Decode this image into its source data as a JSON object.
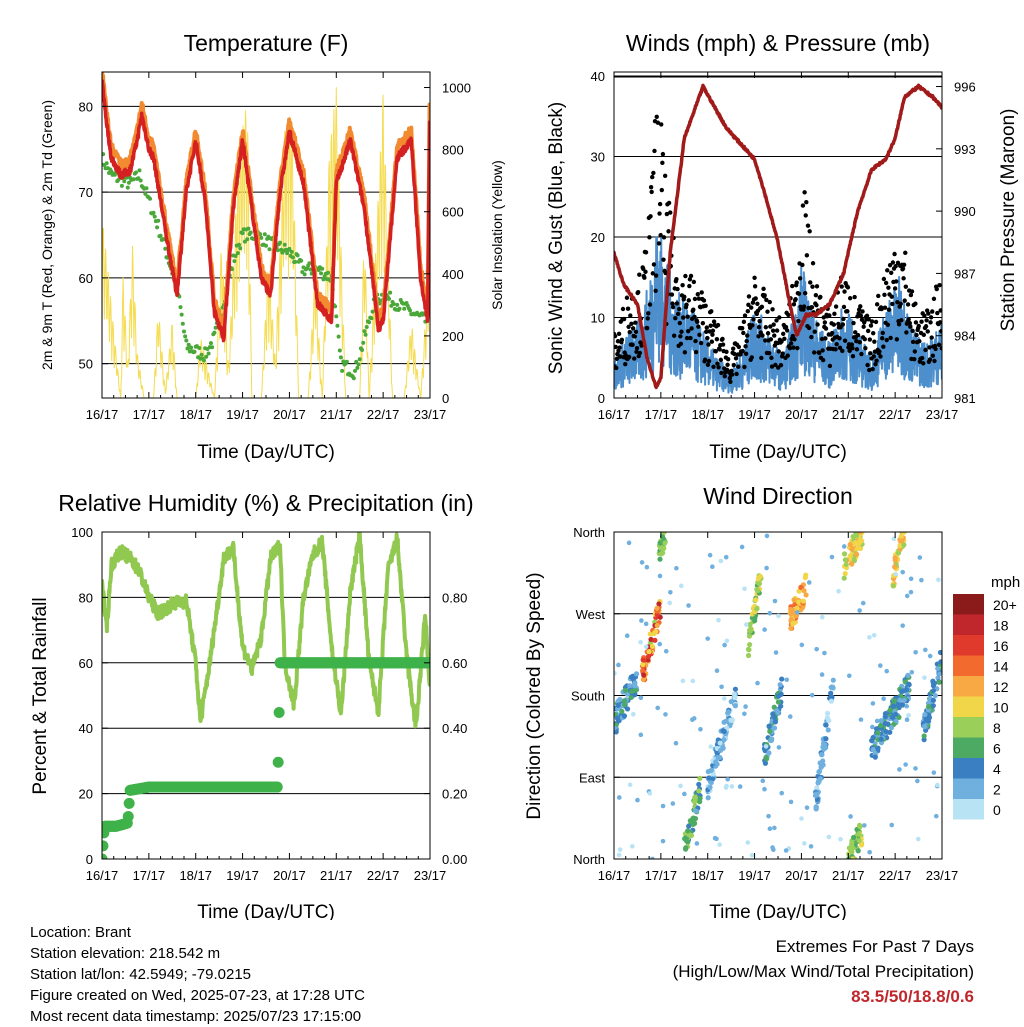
{
  "footer": {
    "location": "Location: Brant",
    "elevation": "Station elevation: 218.542 m",
    "latlon": "Station lat/lon: 42.5949; -79.0215",
    "created": "Figure created on Wed, 2025-07-23, at 17:28 UTC",
    "recent": "Most recent data timestamp: 2025/07/23 17:15:00",
    "extremes_title": "Extremes For Past 7 Days",
    "extremes_desc": "(High/Low/Max Wind/Total Precipitation)",
    "extremes_values": "83.5/50/18.8/0.6"
  },
  "colors": {
    "temp_9m": "#d42020",
    "temp_2m": "#f28a30",
    "dewpoint": "#4aa83a",
    "solar": "#f5dc50",
    "wind": "#4d8fcc",
    "gust": "#000000",
    "pressure": "#a01a1a",
    "rh": "#90c850",
    "rain": "#3fb24a"
  },
  "chart_data": [
    {
      "id": "temperature",
      "type": "line",
      "title": "Temperature (F)",
      "xlabel": "Time (Day/UTC)",
      "ylabel": "2m & 9m T (Red, Orange) & 2m Td (Green)",
      "y2label": "Solar Insolation (Yellow)",
      "xticks": [
        "16/17",
        "17/17",
        "18/17",
        "19/17",
        "20/17",
        "21/17",
        "22/17",
        "23/17"
      ],
      "xlim": [
        0,
        7
      ],
      "ylim": [
        46,
        84
      ],
      "yticks": [
        50,
        60,
        70,
        80
      ],
      "y2lim": [
        0,
        1050
      ],
      "y2ticks": [
        0,
        200,
        400,
        600,
        800,
        1000
      ],
      "grid": true,
      "series": [
        {
          "key": "temp",
          "x": [
            0,
            0.1,
            0.2,
            0.4,
            0.6,
            0.75,
            0.85,
            1.0,
            1.1,
            1.4,
            1.6,
            1.8,
            2.0,
            2.2,
            2.4,
            2.6,
            2.8,
            3.0,
            3.2,
            3.4,
            3.6,
            3.8,
            4.0,
            4.3,
            4.6,
            4.9,
            5.0,
            5.3,
            5.6,
            5.9,
            6.0,
            6.3,
            6.6,
            6.8,
            6.95,
            7.0
          ],
          "values": [
            83,
            78,
            74,
            72,
            72.5,
            76,
            79,
            75,
            74,
            64,
            58,
            70,
            76,
            69,
            56,
            53,
            68,
            76,
            68,
            60,
            58,
            70,
            77,
            71,
            57,
            55,
            71,
            76,
            68,
            54,
            55,
            74,
            76,
            60,
            55,
            83
          ]
        },
        {
          "key": "dewpoint",
          "x": [
            0,
            0.2,
            0.6,
            0.8,
            1.0,
            1.2,
            1.6,
            1.8,
            2.2,
            2.4,
            2.8,
            3.0,
            3.3,
            3.6,
            4.0,
            4.3,
            4.6,
            4.9,
            5.1,
            5.4,
            5.8,
            6.0,
            6.3,
            6.6,
            6.9,
            7.0
          ],
          "values": [
            74,
            72,
            71,
            72,
            69,
            66,
            59,
            52,
            51,
            53,
            62,
            65,
            65,
            64,
            63,
            61,
            61,
            60,
            50,
            49,
            57,
            58,
            57,
            56,
            55,
            65
          ]
        },
        {
          "key": "solar",
          "x": [
            0,
            0.4,
            0.45,
            0.55,
            0.65,
            0.75,
            0.9,
            1.1,
            1.2,
            1.35,
            1.5,
            1.6,
            2.0,
            2.1,
            2.4,
            2.55,
            2.7,
            2.9,
            3.1,
            3.2,
            3.4,
            3.55,
            3.7,
            3.9,
            4.05,
            4.2,
            4.4,
            4.55,
            4.7,
            4.85,
            5.0,
            5.2,
            5.5,
            5.6,
            5.7,
            6.0,
            6.2,
            6.45,
            6.6,
            6.8,
            7.0
          ],
          "values": [
            600,
            0,
            400,
            100,
            500,
            150,
            0,
            0,
            300,
            20,
            250,
            0,
            0,
            200,
            0,
            500,
            100,
            750,
            980,
            0,
            0,
            450,
            120,
            860,
            950,
            0,
            0,
            420,
            0,
            800,
            1000,
            0,
            0,
            560,
            0,
            1000,
            0,
            0,
            250,
            0,
            500
          ]
        }
      ]
    },
    {
      "id": "winds",
      "type": "line",
      "title": "Winds (mph) & Pressure (mb)",
      "xlabel": "Time (Day/UTC)",
      "ylabel": "Sonic Wind & Gust (Blue, Black)",
      "y2label": "Station Pressure (Maroon)",
      "xticks": [
        "16/17",
        "17/17",
        "18/17",
        "19/17",
        "20/17",
        "21/17",
        "22/17",
        "23/17"
      ],
      "xlim": [
        0,
        7
      ],
      "ylim": [
        0,
        40.5
      ],
      "yticks": [
        0,
        10,
        20,
        30,
        40
      ],
      "y2lim": [
        981,
        996.7
      ],
      "y2ticks": [
        981,
        984,
        987,
        990,
        993,
        996
      ],
      "grid": true,
      "series": [
        {
          "key": "gust",
          "x": [
            0,
            0.3,
            0.6,
            0.8,
            0.95,
            1.05,
            1.3,
            1.6,
            1.9,
            2.2,
            2.5,
            2.8,
            3.0,
            3.3,
            3.6,
            3.9,
            4.0,
            4.3,
            4.6,
            4.9,
            5.2,
            5.5,
            5.8,
            6.1,
            6.4,
            6.7,
            7.0
          ],
          "values": [
            6,
            10,
            12,
            20,
            35,
            22,
            14,
            12,
            10,
            7,
            4,
            8,
            12,
            9,
            7,
            12,
            22,
            11,
            8,
            12,
            9,
            7,
            13,
            17,
            9,
            8,
            12
          ]
        },
        {
          "key": "wind",
          "x": [
            0,
            0.3,
            0.6,
            0.8,
            0.95,
            1.05,
            1.3,
            1.6,
            1.9,
            2.2,
            2.5,
            2.8,
            3.0,
            3.3,
            3.6,
            3.9,
            4.0,
            4.3,
            4.6,
            4.9,
            5.2,
            5.5,
            5.8,
            6.1,
            6.4,
            6.7,
            7.0
          ],
          "values": [
            3,
            5,
            6,
            10,
            14,
            11,
            8,
            7,
            5,
            3,
            2,
            4,
            7,
            5,
            3,
            7,
            10,
            6,
            4,
            7,
            5,
            3,
            7,
            9,
            5,
            4,
            6
          ]
        },
        {
          "key": "pressure",
          "x": [
            0,
            0.2,
            0.5,
            0.7,
            0.9,
            1.0,
            1.2,
            1.5,
            1.9,
            2.4,
            2.8,
            3.0,
            3.2,
            3.5,
            3.8,
            3.9,
            4.1,
            4.3,
            4.6,
            4.9,
            5.2,
            5.5,
            5.8,
            6.0,
            6.2,
            6.5,
            6.8,
            7.0
          ],
          "values": [
            988,
            986.5,
            985.5,
            983,
            981.5,
            982,
            988,
            993.5,
            996,
            994,
            993,
            992.5,
            991,
            988.5,
            985,
            984,
            985,
            985,
            985.5,
            987,
            990,
            992,
            992.5,
            993.5,
            995.5,
            996,
            995.5,
            995
          ]
        }
      ]
    },
    {
      "id": "humidity",
      "type": "line",
      "title": "Relative Humidity (%) & Precipitation (in)",
      "xlabel": "Time (Day/UTC)",
      "ylabel": "Percent & Total Rainfall",
      "xticks": [
        "16/17",
        "17/17",
        "18/17",
        "19/17",
        "20/17",
        "21/17",
        "22/17",
        "23/17"
      ],
      "xlim": [
        0,
        7
      ],
      "ylim": [
        0,
        100
      ],
      "yticks": [
        0,
        20,
        40,
        60,
        80,
        100
      ],
      "y2lim": [
        0,
        1.0
      ],
      "y2ticks": [
        "0.00",
        "0.20",
        "0.40",
        "0.60",
        "0.80"
      ],
      "grid": true,
      "series": [
        {
          "key": "rh",
          "x": [
            0,
            0.1,
            0.2,
            0.4,
            0.6,
            0.8,
            1.0,
            1.2,
            1.5,
            1.8,
            2.0,
            2.1,
            2.3,
            2.6,
            2.8,
            3.0,
            3.2,
            3.4,
            3.6,
            3.8,
            3.9,
            4.1,
            4.3,
            4.5,
            4.7,
            4.9,
            5.1,
            5.3,
            5.5,
            5.7,
            5.9,
            6.1,
            6.3,
            6.5,
            6.7,
            6.9,
            7.0
          ],
          "values": [
            85,
            70,
            90,
            94,
            92,
            88,
            80,
            75,
            78,
            79,
            60,
            42,
            60,
            92,
            95,
            65,
            58,
            68,
            92,
            96,
            60,
            47,
            80,
            93,
            97,
            65,
            44,
            82,
            99,
            60,
            45,
            88,
            98,
            62,
            40,
            75,
            50
          ]
        },
        {
          "key": "rain",
          "x": [
            0,
            0.05,
            0.3,
            0.55,
            0.6,
            1.0,
            1.5,
            2.0,
            3.0,
            3.75,
            3.8,
            4.0,
            5.0,
            6.0,
            7.0
          ],
          "values": [
            0,
            0.1,
            0.1,
            0.11,
            0.21,
            0.22,
            0.22,
            0.22,
            0.22,
            0.22,
            0.6,
            0.6,
            0.6,
            0.6,
            0.6
          ]
        }
      ]
    },
    {
      "id": "direction",
      "type": "scatter",
      "title": "Wind Direction",
      "xlabel": "Time (Day/UTC)",
      "ylabel": "Direction (Colored By Speed)",
      "xticks": [
        "16/17",
        "17/17",
        "18/17",
        "19/17",
        "20/17",
        "21/17",
        "22/17",
        "23/17"
      ],
      "xlim": [
        0,
        7
      ],
      "ylim": [
        0,
        360
      ],
      "yticks": [
        "North",
        "East",
        "South",
        "West",
        "North"
      ],
      "grid": true,
      "legend": {
        "title": "mph",
        "placement": "right",
        "labels": [
          "20+",
          "18",
          "16",
          "14",
          "12",
          "10",
          "8",
          "6",
          "4",
          "2",
          "0"
        ],
        "colors": [
          "#8b1a1a",
          "#c0272d",
          "#e03a2c",
          "#f26a2e",
          "#f8a943",
          "#f2d64a",
          "#9acf5a",
          "#4daa62",
          "#3a7fc1",
          "#6fb0df",
          "#b8e3f5"
        ]
      },
      "clusters": [
        {
          "x": [
            0,
            0.5
          ],
          "dir": [
            150,
            200
          ],
          "speed": [
            2,
            6
          ]
        },
        {
          "x": [
            0.6,
            1.0
          ],
          "dir": [
            200,
            280
          ],
          "speed": [
            8,
            18
          ]
        },
        {
          "x": [
            0.95,
            1.1
          ],
          "dir": [
            340,
            360
          ],
          "speed": [
            6,
            8
          ]
        },
        {
          "x": [
            1.5,
            1.85
          ],
          "dir": [
            10,
            80
          ],
          "speed": [
            4,
            8
          ]
        },
        {
          "x": [
            2.0,
            2.6
          ],
          "dir": [
            80,
            180
          ],
          "speed": [
            0,
            4
          ]
        },
        {
          "x": [
            2.85,
            3.15
          ],
          "dir": [
            230,
            320
          ],
          "speed": [
            6,
            10
          ]
        },
        {
          "x": [
            3.2,
            3.6
          ],
          "dir": [
            110,
            190
          ],
          "speed": [
            2,
            6
          ]
        },
        {
          "x": [
            3.75,
            4.1
          ],
          "dir": [
            260,
            300
          ],
          "speed": [
            10,
            14
          ]
        },
        {
          "x": [
            4.3,
            4.7
          ],
          "dir": [
            60,
            200
          ],
          "speed": [
            0,
            4
          ]
        },
        {
          "x": [
            4.9,
            5.3
          ],
          "dir": [
            320,
            360
          ],
          "speed": [
            8,
            12
          ]
        },
        {
          "x": [
            5.0,
            5.3
          ],
          "dir": [
            0,
            30
          ],
          "speed": [
            6,
            10
          ]
        },
        {
          "x": [
            5.5,
            6.3
          ],
          "dir": [
            120,
            190
          ],
          "speed": [
            2,
            6
          ]
        },
        {
          "x": [
            5.95,
            6.2
          ],
          "dir": [
            310,
            360
          ],
          "speed": [
            8,
            12
          ]
        },
        {
          "x": [
            6.6,
            7.0
          ],
          "dir": [
            140,
            220
          ],
          "speed": [
            2,
            6
          ]
        }
      ]
    }
  ]
}
